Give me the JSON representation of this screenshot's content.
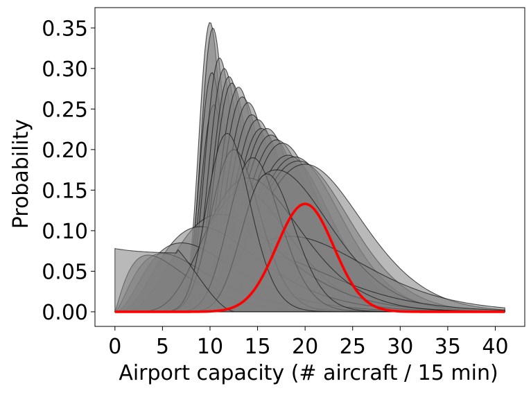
{
  "chart_data": {
    "type": "area",
    "title": "",
    "xlabel": "Airport capacity (# aircraft / 15 min)",
    "ylabel": "Probability",
    "xlim": [
      -2.1,
      43.1
    ],
    "ylim": [
      -0.018,
      0.375
    ],
    "xticks": [
      0,
      5,
      10,
      15,
      20,
      25,
      30,
      35,
      40
    ],
    "xtick_labels": [
      "0",
      "5",
      "10",
      "15",
      "20",
      "25",
      "30",
      "35",
      "40"
    ],
    "yticks": [
      0.0,
      0.05,
      0.1,
      0.15,
      0.2,
      0.25,
      0.3,
      0.35
    ],
    "ytick_labels": [
      "0.00",
      "0.05",
      "0.10",
      "0.15",
      "0.20",
      "0.25",
      "0.30",
      "0.35"
    ],
    "grid": false,
    "legend": "none",
    "x_range": [
      0,
      41
    ],
    "gray_series": [
      {
        "kind": "gamma",
        "shape": 70,
        "mode": 10.0,
        "peak": 0.357
      },
      {
        "kind": "gamma",
        "shape": 65,
        "mode": 10.3,
        "peak": 0.35
      },
      {
        "kind": "gamma",
        "shape": 60,
        "mode": 10.2,
        "peak": 0.295
      },
      {
        "kind": "gamma",
        "shape": 55,
        "mode": 10.4,
        "peak": 0.255
      },
      {
        "kind": "gamma",
        "shape": 50,
        "mode": 11.0,
        "peak": 0.313
      },
      {
        "kind": "gamma",
        "shape": 48,
        "mode": 11.5,
        "peak": 0.3
      },
      {
        "kind": "gamma",
        "shape": 45,
        "mode": 12.0,
        "peak": 0.29
      },
      {
        "kind": "gamma",
        "shape": 42,
        "mode": 12.3,
        "peak": 0.282
      },
      {
        "kind": "gamma",
        "shape": 40,
        "mode": 13.0,
        "peak": 0.277
      },
      {
        "kind": "gamma",
        "shape": 38,
        "mode": 13.4,
        "peak": 0.265
      },
      {
        "kind": "gamma",
        "shape": 36,
        "mode": 14.0,
        "peak": 0.258
      },
      {
        "kind": "gamma",
        "shape": 34,
        "mode": 14.4,
        "peak": 0.243
      },
      {
        "kind": "gamma",
        "shape": 32,
        "mode": 15.0,
        "peak": 0.237
      },
      {
        "kind": "gamma",
        "shape": 30,
        "mode": 15.4,
        "peak": 0.226
      },
      {
        "kind": "gamma",
        "shape": 28,
        "mode": 16.0,
        "peak": 0.226
      },
      {
        "kind": "gamma",
        "shape": 26,
        "mode": 16.4,
        "peak": 0.218
      },
      {
        "kind": "gamma",
        "shape": 24,
        "mode": 17.0,
        "peak": 0.212
      },
      {
        "kind": "gamma",
        "shape": 22,
        "mode": 17.6,
        "peak": 0.208
      },
      {
        "kind": "gamma",
        "shape": 20,
        "mode": 18.2,
        "peak": 0.193
      },
      {
        "kind": "gamma",
        "shape": 18,
        "mode": 18.9,
        "peak": 0.191
      },
      {
        "kind": "gamma",
        "shape": 16,
        "mode": 19.3,
        "peak": 0.186
      },
      {
        "kind": "gamma",
        "shape": 14,
        "mode": 20.0,
        "peak": 0.182
      },
      {
        "kind": "gamma",
        "shape": 12,
        "mode": 17.0,
        "peak": 0.175
      },
      {
        "kind": "gamma",
        "shape": 10,
        "mode": 13.5,
        "peak": 0.15
      },
      {
        "kind": "gamma",
        "shape": 8,
        "mode": 18.5,
        "peak": 0.093
      },
      {
        "kind": "gamma",
        "shape": 6,
        "mode": 15.0,
        "peak": 0.072
      },
      {
        "kind": "gamma",
        "shape": 5,
        "mode": 11.0,
        "peak": 0.12
      },
      {
        "kind": "gamma",
        "shape": 4,
        "mode": 9.0,
        "peak": 0.105
      },
      {
        "kind": "gamma",
        "shape": 3.2,
        "mode": 7.0,
        "peak": 0.085
      },
      {
        "kind": "gamma",
        "shape": 2.6,
        "mode": 5.0,
        "peak": 0.072
      },
      {
        "kind": "gamma",
        "shape": 2.2,
        "mode": 3.5,
        "peak": 0.07
      },
      {
        "kind": "gamma",
        "shape": 9,
        "mode": 14.0,
        "peak": 0.165
      },
      {
        "kind": "gamma",
        "shape": 25,
        "mode": 12.5,
        "peak": 0.2
      },
      {
        "kind": "gamma",
        "shape": 30,
        "mode": 14.5,
        "peak": 0.19
      },
      {
        "kind": "gamma",
        "shape": 35,
        "mode": 16.0,
        "peak": 0.17
      },
      {
        "kind": "gamma",
        "shape": 28,
        "mode": 11.8,
        "peak": 0.22
      },
      {
        "kind": "flat",
        "level": 0.078,
        "fall_start": 6.5,
        "fall_end": 12.8
      }
    ],
    "red_series": {
      "color": "#ff0000",
      "mean": 20.0,
      "sd": 3.0,
      "peak": 0.133
    }
  },
  "colors": {
    "fill": "#808080",
    "stroke": "#1a1a1a",
    "highlight": "#ff0000",
    "axis": "#000000",
    "background": "#ffffff"
  }
}
